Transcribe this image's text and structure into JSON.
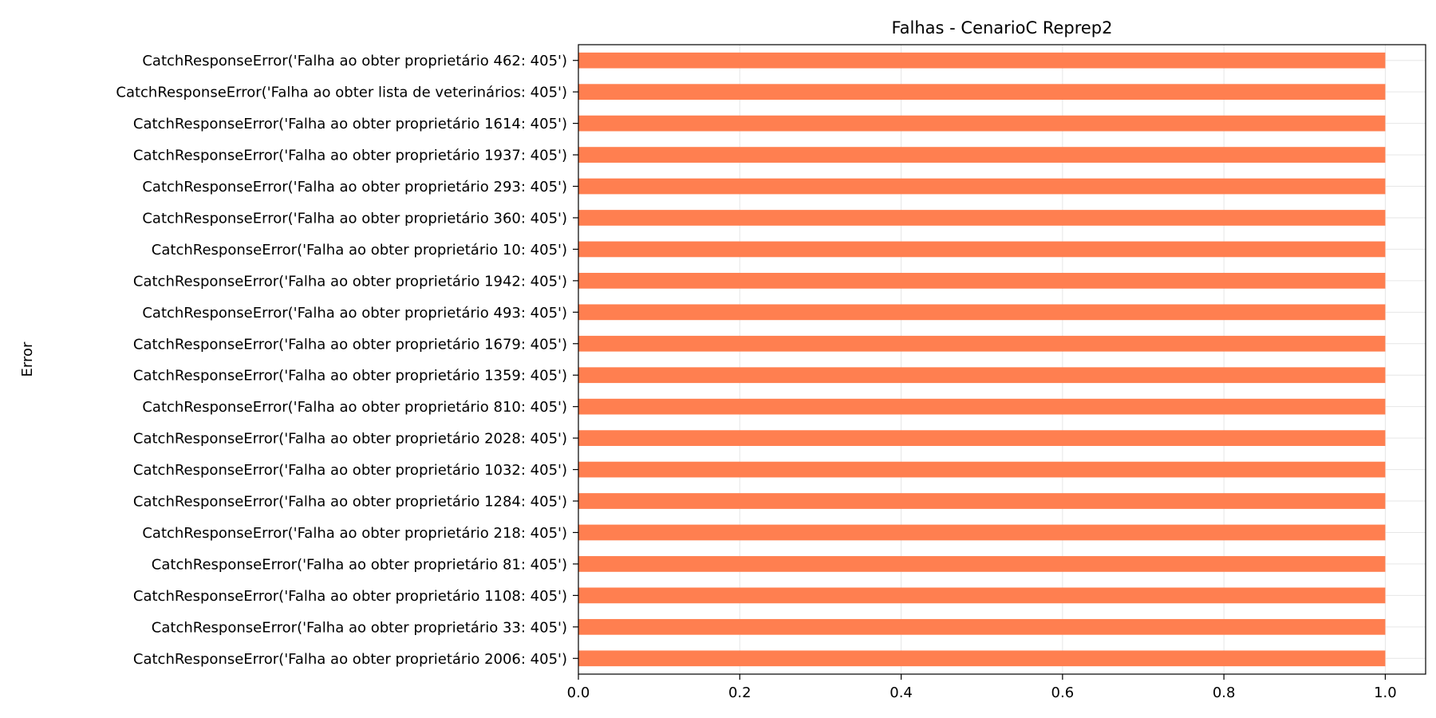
{
  "chart_data": {
    "type": "bar",
    "orientation": "horizontal",
    "title": "Falhas - CenarioC Reprep2",
    "xlabel": "",
    "ylabel": "Error",
    "xlim": [
      0,
      1.05
    ],
    "xticks": [
      "0.0",
      "0.2",
      "0.4",
      "0.6",
      "0.8",
      "1.0"
    ],
    "grid": true,
    "legend": "none",
    "bar_color": "#FF7F50",
    "categories": [
      "CatchResponseError('Falha ao obter proprietário 462: 405')",
      "CatchResponseError('Falha ao obter lista de veterinários: 405')",
      "CatchResponseError('Falha ao obter proprietário 1614: 405')",
      "CatchResponseError('Falha ao obter proprietário 1937: 405')",
      "CatchResponseError('Falha ao obter proprietário 293: 405')",
      "CatchResponseError('Falha ao obter proprietário 360: 405')",
      "CatchResponseError('Falha ao obter proprietário 10: 405')",
      "CatchResponseError('Falha ao obter proprietário 1942: 405')",
      "CatchResponseError('Falha ao obter proprietário 493: 405')",
      "CatchResponseError('Falha ao obter proprietário 1679: 405')",
      "CatchResponseError('Falha ao obter proprietário 1359: 405')",
      "CatchResponseError('Falha ao obter proprietário 810: 405')",
      "CatchResponseError('Falha ao obter proprietário 2028: 405')",
      "CatchResponseError('Falha ao obter proprietário 1032: 405')",
      "CatchResponseError('Falha ao obter proprietário 1284: 405')",
      "CatchResponseError('Falha ao obter proprietário 218: 405')",
      "CatchResponseError('Falha ao obter proprietário 81: 405')",
      "CatchResponseError('Falha ao obter proprietário 1108: 405')",
      "CatchResponseError('Falha ao obter proprietário 33: 405')",
      "CatchResponseError('Falha ao obter proprietário 2006: 405')"
    ],
    "values": [
      1,
      1,
      1,
      1,
      1,
      1,
      1,
      1,
      1,
      1,
      1,
      1,
      1,
      1,
      1,
      1,
      1,
      1,
      1,
      1
    ]
  }
}
